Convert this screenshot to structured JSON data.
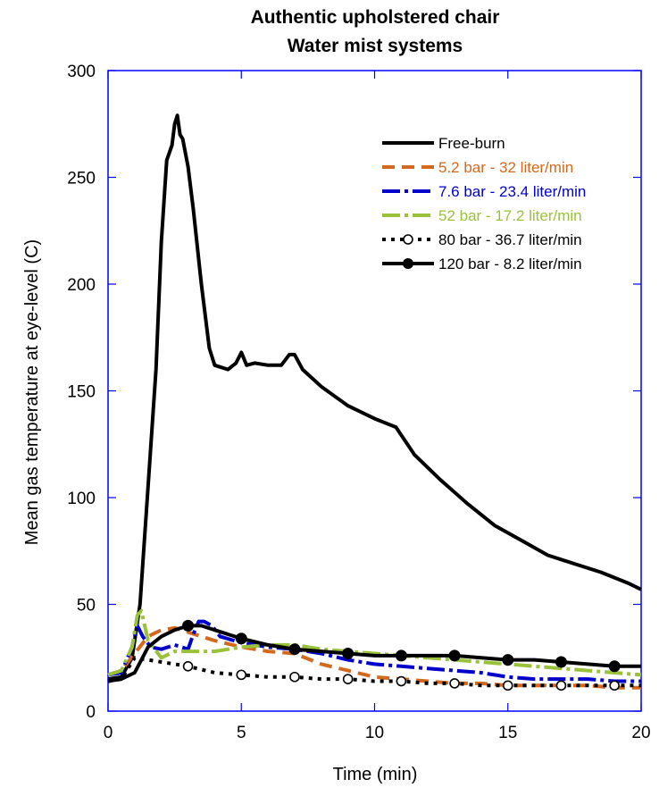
{
  "chart_data": {
    "type": "line",
    "title": "Authentic upholstered chair",
    "subtitle": "Water mist systems",
    "xlabel": "Time (min)",
    "ylabel": "Mean gas temperature at eye-level (C)",
    "xlim": [
      0,
      20
    ],
    "ylim": [
      0,
      300
    ],
    "xticks": [
      0,
      5,
      10,
      15,
      20
    ],
    "yticks": [
      0,
      50,
      100,
      150,
      200,
      250,
      300
    ],
    "grid": false,
    "legend_position": "top-right",
    "series": [
      {
        "name": "Free-burn",
        "color": "#000000",
        "style": "solid",
        "marker": "none",
        "x": [
          0,
          0.5,
          0.9,
          1.2,
          1.5,
          1.8,
          2.0,
          2.2,
          2.4,
          2.5,
          2.6,
          2.7,
          2.8,
          3.0,
          3.2,
          3.5,
          3.8,
          4.0,
          4.5,
          4.8,
          5.0,
          5.2,
          5.5,
          6.0,
          6.5,
          6.8,
          7.0,
          7.3,
          8.0,
          9.0,
          10.0,
          10.8,
          11.5,
          12.5,
          13.5,
          14.5,
          15.5,
          16.5,
          17.5,
          18.5,
          19.5,
          20.0
        ],
        "y": [
          15,
          16,
          25,
          50,
          105,
          160,
          220,
          258,
          265,
          275,
          279,
          270,
          268,
          255,
          235,
          200,
          170,
          162,
          160,
          163,
          168,
          162,
          163,
          162,
          162,
          167,
          167,
          160,
          152,
          143,
          137,
          133,
          120,
          108,
          97,
          87,
          80,
          73,
          69,
          65,
          60,
          57
        ]
      },
      {
        "name": "5.2 bar - 32 liter/min",
        "color": "#d2691e",
        "style": "dashed",
        "marker": "none",
        "x": [
          0,
          0.5,
          1.0,
          1.5,
          2.0,
          2.5,
          3.0,
          3.5,
          4.0,
          5.0,
          6.0,
          7.0,
          8.0,
          9.0,
          10.0,
          11.0,
          12.0,
          13.0,
          14.0,
          15.0,
          16.0,
          17.0,
          18.0,
          19.0,
          20.0
        ],
        "y": [
          17,
          19,
          27,
          35,
          38,
          39,
          37,
          35,
          33,
          30,
          28,
          27,
          22,
          19,
          16,
          15,
          14,
          13,
          13,
          12,
          12,
          12,
          12,
          11,
          11
        ]
      },
      {
        "name": "7.6 bar - 23.4 liter/min",
        "color": "#0000cc",
        "style": "dash-dot",
        "marker": "none",
        "x": [
          0,
          0.5,
          0.9,
          1.1,
          1.3,
          1.6,
          2.0,
          2.5,
          3.0,
          3.2,
          3.4,
          3.6,
          3.9,
          4.2,
          5.0,
          6.0,
          7.0,
          8.0,
          9.0,
          10.0,
          11.0,
          12.0,
          13.0,
          14.0,
          15.0,
          16.0,
          17.0,
          18.0,
          19.0,
          20.0
        ],
        "y": [
          17,
          18,
          30,
          40,
          35,
          30,
          29,
          31,
          29,
          36,
          42,
          42,
          40,
          35,
          32,
          30,
          29,
          27,
          24,
          22,
          21,
          20,
          19,
          18,
          16,
          15,
          15,
          15,
          14,
          14
        ]
      },
      {
        "name": "52 bar - 17.2 liter/min",
        "color": "#99c23a",
        "style": "dash-dot",
        "marker": "none",
        "x": [
          0,
          0.5,
          0.9,
          1.1,
          1.25,
          1.5,
          2.0,
          2.5,
          3.0,
          4.0,
          5.0,
          6.0,
          7.0,
          8.0,
          9.0,
          10.0,
          11.0,
          12.0,
          13.0,
          14.0,
          15.0,
          16.0,
          17.0,
          18.0,
          19.0,
          20.0
        ],
        "y": [
          17,
          19,
          30,
          45,
          47,
          33,
          25,
          28,
          28,
          28,
          30,
          31,
          31,
          29,
          28,
          27,
          26,
          25,
          24,
          23,
          22,
          21,
          20,
          19,
          18,
          17
        ]
      },
      {
        "name": "80 bar - 36.7 liter/min",
        "color": "#000000",
        "style": "dotted",
        "marker": "open-circle",
        "x": [
          0,
          0.5,
          1.0,
          1.5,
          2.0,
          3.0,
          4.0,
          5.0,
          6.0,
          7.0,
          8.0,
          9.0,
          10.0,
          11.0,
          12.0,
          13.0,
          14.0,
          15.0,
          16.0,
          17.0,
          18.0,
          19.0,
          20.0
        ],
        "y": [
          14,
          15,
          25,
          24,
          23,
          21,
          18,
          17,
          16,
          16,
          15,
          15,
          14,
          14,
          13,
          13,
          12,
          12,
          12,
          12,
          12,
          12,
          12
        ],
        "marker_x": [
          3,
          5,
          7,
          9,
          11,
          13,
          15,
          17,
          19
        ],
        "marker_y": [
          21,
          17,
          16,
          15,
          14,
          13,
          12,
          12,
          12
        ]
      },
      {
        "name": "120 bar - 8.2 liter/min",
        "color": "#000000",
        "style": "solid",
        "marker": "filled-circle",
        "x": [
          0,
          0.5,
          1.0,
          1.5,
          2.0,
          2.5,
          3.0,
          3.5,
          4.0,
          4.5,
          5.0,
          6.0,
          7.0,
          8.0,
          9.0,
          10.0,
          11.0,
          12.0,
          13.0,
          14.0,
          15.0,
          16.0,
          17.0,
          18.0,
          19.0,
          20.0
        ],
        "y": [
          14,
          15,
          18,
          30,
          35,
          38,
          40,
          40,
          38,
          36,
          34,
          31,
          29,
          28,
          27,
          26,
          26,
          26,
          26,
          25,
          24,
          24,
          23,
          22,
          21,
          21
        ],
        "marker_x": [
          3,
          5,
          7,
          9,
          11,
          13,
          15,
          17,
          19
        ],
        "marker_y": [
          40,
          34,
          29,
          27,
          26,
          26,
          24,
          23,
          21
        ]
      }
    ]
  }
}
